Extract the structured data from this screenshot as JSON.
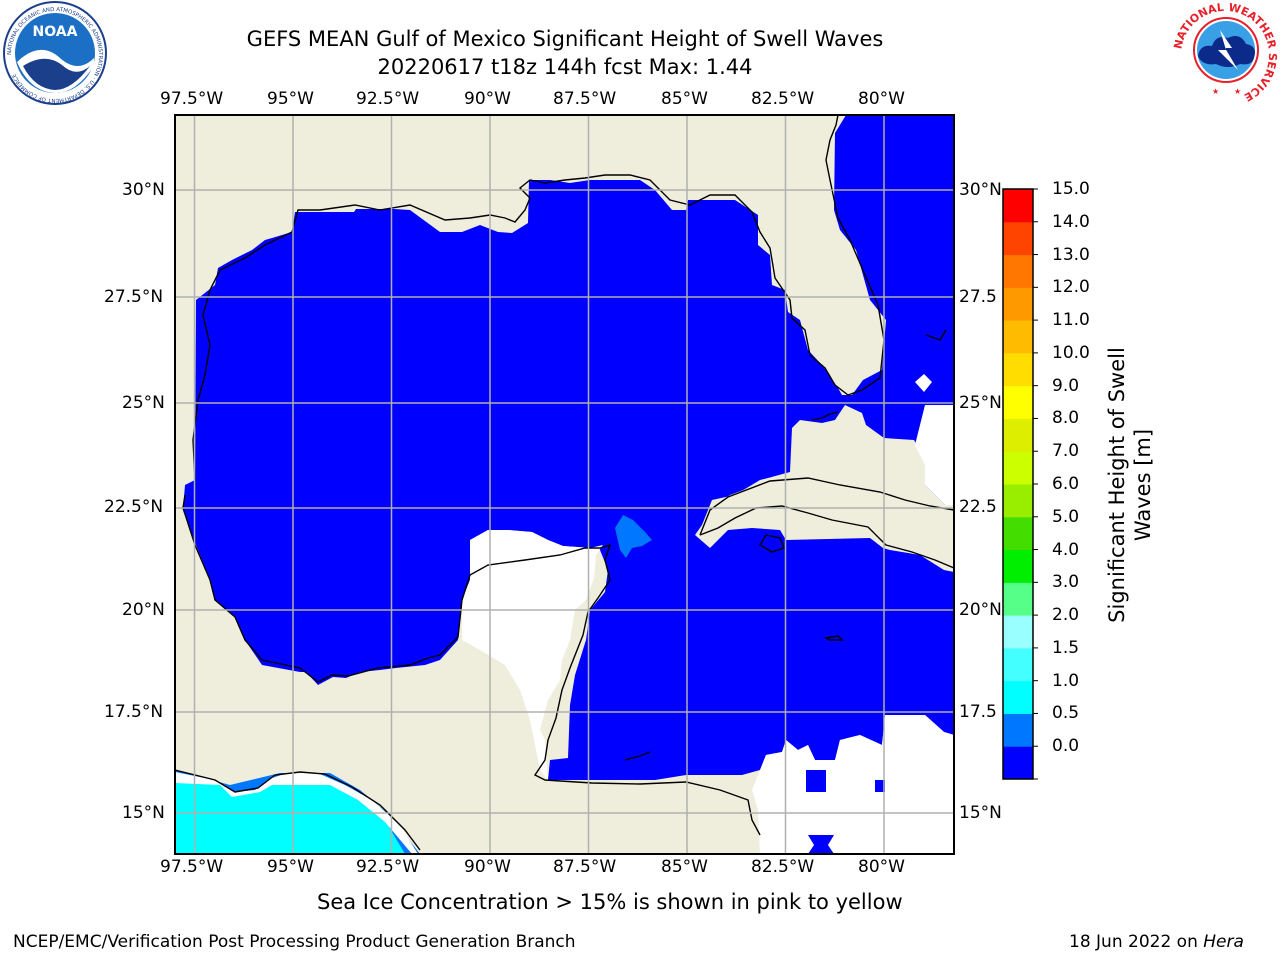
{
  "header": {
    "title_line1": "GEFS MEAN Gulf of Mexico Significant Height of Swell Waves",
    "title_line2": "20220617 t18z 144h fcst   Max: 1.44"
  },
  "logos": {
    "noara": "NOAA",
    "noaa_ring": "NATIONAL OCEANIC AND ATMOSPHERIC ADMINISTRATION · U.S. DEPARTMENT OF COMMERCE",
    "nws_ring": "NATIONAL WEATHER SERVICE"
  },
  "map": {
    "lon_labels": [
      "97.5°W",
      "95°W",
      "92.5°W",
      "90°W",
      "87.5°W",
      "85°W",
      "82.5°W",
      "80°W"
    ],
    "lon_values": [
      -97.5,
      -95,
      -92.5,
      -90,
      -87.5,
      -85,
      -82.5,
      -80
    ],
    "lat_labels_left": [
      "30°N",
      "27.5°N",
      "25°N",
      "22.5°N",
      "20°N",
      "17.5°N",
      "15°N"
    ],
    "lat_labels_right": [
      "30°N",
      "27.5",
      "25°N",
      "22.5",
      "20°N",
      "17.5",
      "15°N"
    ],
    "lat_values": [
      30,
      27.5,
      25,
      22.5,
      20,
      17.5,
      15
    ],
    "extent": {
      "lon_min": -98,
      "lon_max": -78.3,
      "lat_min": 14,
      "lat_max": 31.8
    },
    "gridlines": true,
    "colors": {
      "land": "#efeedd",
      "swell_0_0_5": "#0000ff",
      "swell_0_5_1": "#0077ff",
      "swell_1_1_5": "#00ffff",
      "grid": "#b0b0b0"
    }
  },
  "colorbar": {
    "label": "Significant Height of Swell Waves [m]",
    "ticks": [
      "15.0",
      "14.0",
      "13.0",
      "12.0",
      "11.0",
      "10.0",
      "9.0",
      "8.0",
      "7.0",
      "6.0",
      "5.0",
      "4.0",
      "3.0",
      "2.0",
      "1.5",
      "1.0",
      "0.5",
      "0.0"
    ],
    "colors_bottom_to_top": [
      "#0000ff",
      "#0077ff",
      "#00ffff",
      "#44ffff",
      "#99ffff",
      "#55ff88",
      "#00ee00",
      "#44dd00",
      "#99ee00",
      "#ccff00",
      "#ddee00",
      "#ffff00",
      "#ffdd00",
      "#ffbb00",
      "#ff9900",
      "#ff7700",
      "#ff4400",
      "#ff0000"
    ]
  },
  "note": "Sea Ice Concentration > 15% is shown in pink to yellow",
  "footer": {
    "left": "NCEP/EMC/Verification Post Processing Product Generation Branch",
    "right_prefix": "18 Jun 2022 on ",
    "right_host": "Hera"
  }
}
